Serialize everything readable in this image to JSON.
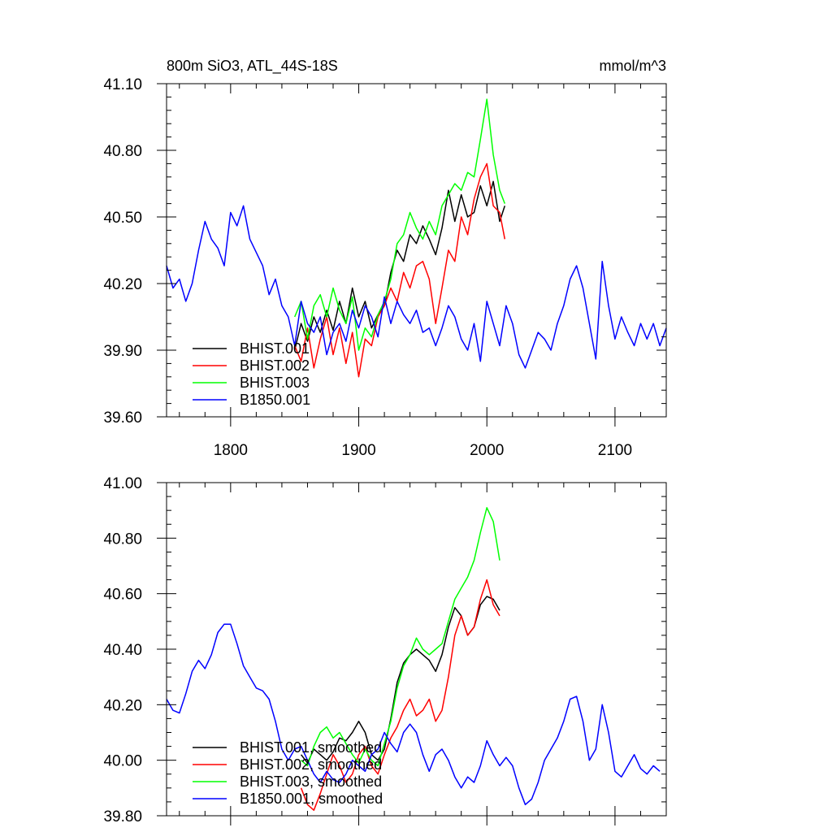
{
  "chart_data": [
    {
      "type": "line",
      "title": "800m SiO3, ATL_44S-18S",
      "units": "mmol/m^3",
      "xlabel": "",
      "ylabel": "",
      "xlim": [
        1750,
        2140
      ],
      "ylim": [
        39.6,
        41.1
      ],
      "xticks": [
        1800,
        1900,
        2000,
        2100
      ],
      "xtick_labels": [
        "1800",
        "1900",
        "2000",
        "2100"
      ],
      "yticks": [
        39.6,
        39.9,
        40.2,
        40.5,
        40.8,
        41.1
      ],
      "ytick_labels": [
        "39.60",
        "39.90",
        "40.20",
        "40.50",
        "40.80",
        "41.10"
      ],
      "grid": false,
      "legend_position": "bottom-left",
      "series": [
        {
          "name": "BHIST.001",
          "color": "#000000",
          "x": [
            1850,
            1855,
            1860,
            1865,
            1870,
            1875,
            1880,
            1885,
            1890,
            1895,
            1900,
            1905,
            1910,
            1915,
            1920,
            1925,
            1930,
            1935,
            1940,
            1945,
            1950,
            1955,
            1960,
            1965,
            1970,
            1975,
            1980,
            1985,
            1990,
            1995,
            2000,
            2005,
            2010,
            2014
          ],
          "y": [
            39.9,
            40.02,
            39.94,
            40.05,
            39.98,
            40.08,
            39.99,
            40.12,
            40.02,
            40.18,
            40.05,
            40.12,
            40.0,
            40.06,
            40.1,
            40.25,
            40.35,
            40.3,
            40.42,
            40.38,
            40.46,
            40.4,
            40.33,
            40.45,
            40.62,
            40.48,
            40.6,
            40.5,
            40.52,
            40.64,
            40.55,
            40.66,
            40.48,
            40.55
          ]
        },
        {
          "name": "BHIST.002",
          "color": "#ff0000",
          "x": [
            1850,
            1855,
            1860,
            1865,
            1870,
            1875,
            1880,
            1885,
            1890,
            1895,
            1900,
            1905,
            1910,
            1915,
            1920,
            1925,
            1930,
            1935,
            1940,
            1945,
            1950,
            1955,
            1960,
            1965,
            1970,
            1975,
            1980,
            1985,
            1990,
            1995,
            2000,
            2005,
            2010,
            2014
          ],
          "y": [
            39.92,
            39.85,
            40.0,
            39.82,
            39.95,
            40.05,
            39.88,
            40.0,
            39.84,
            39.98,
            39.78,
            39.95,
            39.92,
            40.05,
            40.1,
            40.18,
            40.12,
            40.25,
            40.18,
            40.28,
            40.3,
            40.22,
            40.02,
            40.18,
            40.35,
            40.3,
            40.5,
            40.42,
            40.58,
            40.68,
            40.74,
            40.55,
            40.52,
            40.4
          ]
        },
        {
          "name": "BHIST.003",
          "color": "#00ff00",
          "x": [
            1850,
            1855,
            1860,
            1865,
            1870,
            1875,
            1880,
            1885,
            1890,
            1895,
            1900,
            1905,
            1910,
            1915,
            1920,
            1925,
            1930,
            1935,
            1940,
            1945,
            1950,
            1955,
            1960,
            1965,
            1970,
            1975,
            1980,
            1985,
            1990,
            1995,
            2000,
            2005,
            2010,
            2014
          ],
          "y": [
            40.05,
            40.12,
            39.95,
            40.1,
            40.15,
            40.05,
            40.18,
            40.08,
            40.02,
            40.14,
            39.9,
            40.0,
            39.96,
            40.06,
            40.12,
            40.22,
            40.38,
            40.42,
            40.52,
            40.45,
            40.4,
            40.48,
            40.42,
            40.55,
            40.6,
            40.65,
            40.62,
            40.7,
            40.68,
            40.85,
            41.03,
            40.78,
            40.62,
            40.56
          ]
        },
        {
          "name": "B1850.001",
          "color": "#0000ff",
          "x": [
            1750,
            1755,
            1760,
            1765,
            1770,
            1775,
            1780,
            1785,
            1790,
            1795,
            1800,
            1805,
            1810,
            1815,
            1820,
            1825,
            1830,
            1835,
            1840,
            1845,
            1850,
            1855,
            1860,
            1865,
            1870,
            1875,
            1880,
            1885,
            1890,
            1895,
            1900,
            1905,
            1910,
            1915,
            1920,
            1925,
            1930,
            1935,
            1940,
            1945,
            1950,
            1955,
            1960,
            1965,
            1970,
            1975,
            1980,
            1985,
            1990,
            1995,
            2000,
            2005,
            2010,
            2015,
            2020,
            2025,
            2030,
            2035,
            2040,
            2045,
            2050,
            2055,
            2060,
            2065,
            2070,
            2075,
            2080,
            2085,
            2090,
            2095,
            2100,
            2105,
            2110,
            2115,
            2120,
            2125,
            2130,
            2135,
            2140
          ],
          "y": [
            40.28,
            40.18,
            40.22,
            40.12,
            40.2,
            40.35,
            40.48,
            40.4,
            40.36,
            40.28,
            40.52,
            40.46,
            40.55,
            40.4,
            40.34,
            40.28,
            40.15,
            40.22,
            40.1,
            40.05,
            39.92,
            40.12,
            40.02,
            39.98,
            40.05,
            39.88,
            39.98,
            40.02,
            39.94,
            40.08,
            40.0,
            40.1,
            40.05,
            39.96,
            40.14,
            40.02,
            40.12,
            40.06,
            40.02,
            40.08,
            39.98,
            40.0,
            39.92,
            40.0,
            40.1,
            40.05,
            39.95,
            39.9,
            40.02,
            39.85,
            40.12,
            40.02,
            39.92,
            40.1,
            40.02,
            39.88,
            39.82,
            39.9,
            39.98,
            39.95,
            39.9,
            40.02,
            40.1,
            40.22,
            40.28,
            40.18,
            40.02,
            39.86,
            40.3,
            40.1,
            39.95,
            40.05,
            39.98,
            39.92,
            40.02,
            39.95,
            40.02,
            39.92,
            40.0
          ]
        }
      ]
    },
    {
      "type": "line",
      "title": "",
      "xlabel": "",
      "ylabel": "",
      "xlim": [
        1750,
        2140
      ],
      "ylim": [
        39.8,
        41.0
      ],
      "xticks": [
        1800,
        1900,
        2000,
        2100
      ],
      "yticks": [
        39.8,
        40.0,
        40.2,
        40.4,
        40.6,
        40.8,
        41.0
      ],
      "ytick_labels": [
        "39.80",
        "40.00",
        "40.20",
        "40.40",
        "40.60",
        "40.80",
        "41.00"
      ],
      "grid": false,
      "legend_position": "bottom-left",
      "series": [
        {
          "name": "BHIST.001, smoothed",
          "color": "#000000",
          "x": [
            1855,
            1860,
            1865,
            1870,
            1875,
            1880,
            1885,
            1890,
            1895,
            1900,
            1905,
            1910,
            1915,
            1920,
            1925,
            1930,
            1935,
            1940,
            1945,
            1950,
            1955,
            1960,
            1965,
            1970,
            1975,
            1980,
            1985,
            1990,
            1995,
            2000,
            2005,
            2010
          ],
          "y": [
            40.02,
            39.99,
            40.04,
            40.02,
            40.0,
            40.03,
            40.08,
            40.07,
            40.1,
            40.14,
            40.1,
            40.02,
            40.0,
            40.04,
            40.15,
            40.28,
            40.35,
            40.38,
            40.4,
            40.38,
            40.36,
            40.32,
            40.38,
            40.48,
            40.55,
            40.52,
            40.45,
            40.48,
            40.56,
            40.59,
            40.58,
            40.54
          ]
        },
        {
          "name": "BHIST.002, smoothed",
          "color": "#ff0000",
          "x": [
            1855,
            1860,
            1865,
            1870,
            1875,
            1880,
            1885,
            1890,
            1895,
            1900,
            1905,
            1910,
            1915,
            1920,
            1925,
            1930,
            1935,
            1940,
            1945,
            1950,
            1955,
            1960,
            1965,
            1970,
            1975,
            1980,
            1985,
            1990,
            1995,
            2000,
            2005,
            2010
          ],
          "y": [
            39.9,
            39.84,
            39.82,
            39.88,
            39.95,
            40.02,
            39.98,
            39.92,
            39.95,
            40.02,
            40.05,
            39.98,
            39.95,
            40.02,
            40.08,
            40.12,
            40.18,
            40.22,
            40.16,
            40.18,
            40.22,
            40.14,
            40.18,
            40.3,
            40.45,
            40.52,
            40.45,
            40.48,
            40.58,
            40.65,
            40.56,
            40.52
          ]
        },
        {
          "name": "BHIST.003, smoothed",
          "color": "#00ff00",
          "x": [
            1855,
            1860,
            1865,
            1870,
            1875,
            1880,
            1885,
            1890,
            1895,
            1900,
            1905,
            1910,
            1915,
            1920,
            1925,
            1930,
            1935,
            1940,
            1945,
            1950,
            1955,
            1960,
            1965,
            1970,
            1975,
            1980,
            1985,
            1990,
            1995,
            2000,
            2005,
            2010
          ],
          "y": [
            40.0,
            39.98,
            40.05,
            40.1,
            40.12,
            40.08,
            40.1,
            40.06,
            40.02,
            39.99,
            40.04,
            40.0,
            39.98,
            40.06,
            40.14,
            40.26,
            40.34,
            40.38,
            40.44,
            40.4,
            40.38,
            40.4,
            40.42,
            40.5,
            40.58,
            40.62,
            40.66,
            40.72,
            40.82,
            40.91,
            40.86,
            40.72
          ]
        },
        {
          "name": "B1850.001, smoothed",
          "color": "#0000ff",
          "x": [
            1750,
            1755,
            1760,
            1765,
            1770,
            1775,
            1780,
            1785,
            1790,
            1795,
            1800,
            1805,
            1810,
            1815,
            1820,
            1825,
            1830,
            1835,
            1840,
            1845,
            1850,
            1855,
            1860,
            1865,
            1870,
            1875,
            1880,
            1885,
            1890,
            1895,
            1900,
            1905,
            1910,
            1915,
            1920,
            1925,
            1930,
            1935,
            1940,
            1945,
            1950,
            1955,
            1960,
            1965,
            1970,
            1975,
            1980,
            1985,
            1990,
            1995,
            2000,
            2005,
            2010,
            2015,
            2020,
            2025,
            2030,
            2035,
            2040,
            2045,
            2050,
            2055,
            2060,
            2065,
            2070,
            2075,
            2080,
            2085,
            2090,
            2095,
            2100,
            2105,
            2110,
            2115,
            2120,
            2125,
            2130,
            2135
          ],
          "y": [
            40.22,
            40.18,
            40.17,
            40.24,
            40.32,
            40.36,
            40.33,
            40.38,
            40.46,
            40.49,
            40.49,
            40.42,
            40.34,
            40.3,
            40.26,
            40.25,
            40.22,
            40.14,
            40.04,
            40.0,
            40.04,
            40.05,
            40.0,
            39.95,
            39.92,
            39.96,
            39.93,
            39.92,
            39.95,
            40.0,
            39.98,
            39.96,
            40.02,
            40.04,
            40.1,
            40.06,
            40.03,
            40.1,
            40.13,
            40.1,
            40.02,
            39.96,
            40.02,
            40.04,
            40.0,
            39.94,
            39.9,
            39.94,
            39.92,
            39.98,
            40.07,
            40.02,
            39.98,
            40.01,
            39.98,
            39.9,
            39.84,
            39.86,
            39.92,
            40.0,
            40.04,
            40.08,
            40.14,
            40.22,
            40.23,
            40.14,
            40.0,
            40.04,
            40.2,
            40.1,
            39.96,
            39.94,
            39.98,
            40.02,
            39.97,
            39.95,
            39.98,
            39.96
          ]
        }
      ]
    }
  ]
}
